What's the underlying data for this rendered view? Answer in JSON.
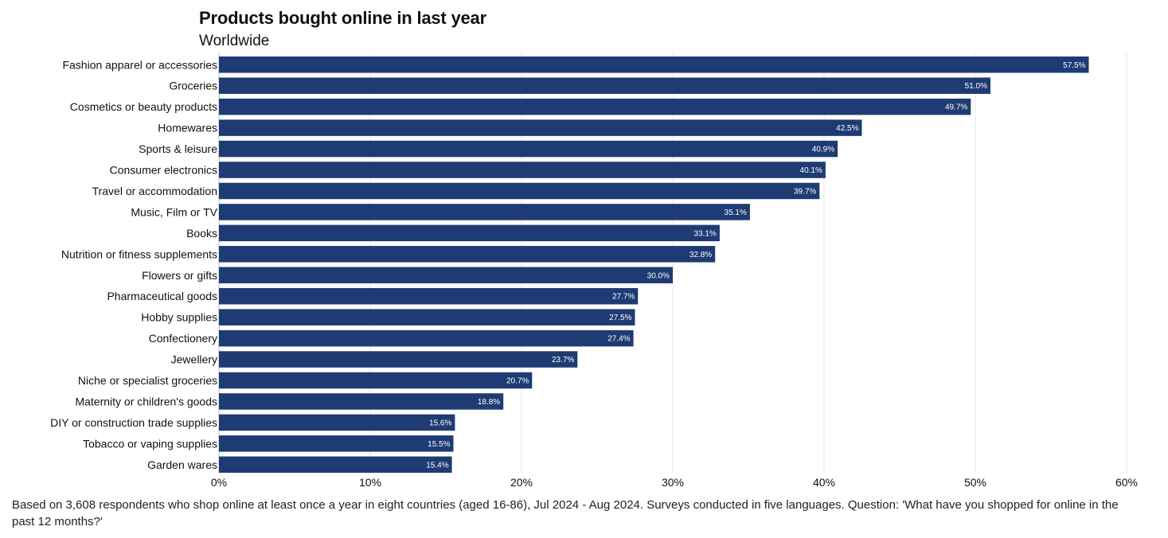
{
  "chart_data": {
    "type": "bar",
    "orientation": "horizontal",
    "title": "Products bought online in last year",
    "subtitle": "Worldwide",
    "categories": [
      "Fashion apparel or accessories",
      "Groceries",
      "Cosmetics or beauty products",
      "Homewares",
      "Sports & leisure",
      "Consumer electronics",
      "Travel or accommodation",
      "Music, Film or TV",
      "Books",
      "Nutrition or fitness supplements",
      "Flowers or gifts",
      "Pharmaceutical goods",
      "Hobby supplies",
      "Confectionery",
      "Jewellery",
      "Niche or specialist groceries",
      "Maternity or children's goods",
      "DIY or construction trade supplies",
      "Tobacco or vaping supplies",
      "Garden wares"
    ],
    "values": [
      57.5,
      51.0,
      49.7,
      42.5,
      40.9,
      40.1,
      39.7,
      35.1,
      33.1,
      32.8,
      30.0,
      27.7,
      27.5,
      27.4,
      23.7,
      20.7,
      18.8,
      15.6,
      15.5,
      15.4
    ],
    "value_labels": [
      "57.5%",
      "51.0%",
      "49.7%",
      "42.5%",
      "40.9%",
      "40.1%",
      "39.7%",
      "35.1%",
      "33.1%",
      "32.8%",
      "30.0%",
      "27.7%",
      "27.5%",
      "27.4%",
      "23.7%",
      "20.7%",
      "18.8%",
      "15.6%",
      "15.5%",
      "15.4%"
    ],
    "xlim": [
      0,
      60
    ],
    "x_ticks": [
      0,
      10,
      20,
      30,
      40,
      50,
      60
    ],
    "x_tick_labels": [
      "0%",
      "10%",
      "20%",
      "30%",
      "40%",
      "50%",
      "60%"
    ],
    "grid": "vertical",
    "legend": "none",
    "bar_color": "#1f3b73",
    "value_label_color": "#ffffff",
    "grid_color": "#e6e6e6"
  },
  "footnote": "Based on 3,608 respondents who shop online at least once a year in eight countries (aged 16-86), Jul 2024 - Aug 2024. Surveys conducted in five languages. Question: 'What have you shopped for online in the past 12 months?'"
}
